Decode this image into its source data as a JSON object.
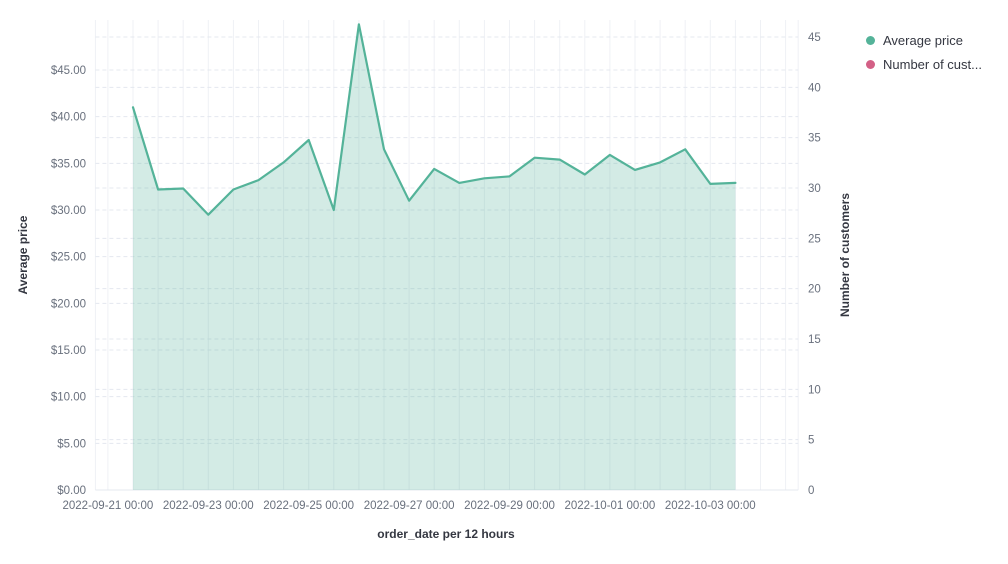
{
  "legend": {
    "items": [
      {
        "label": "Average price",
        "color": "#54b399"
      },
      {
        "label": "Number of cust...",
        "color": "#d36086"
      }
    ]
  },
  "colors": {
    "series_line": "#54b399",
    "series_fill": "rgba(84,179,153,0.26)",
    "grid_vertical": "#eff1f5",
    "grid_dashed": "#e4e8ef",
    "plot_edge": "#e4e8ef",
    "tick_text": "#69707d",
    "title_text": "#343741"
  },
  "chart_data": {
    "type": "area",
    "title": "",
    "xlabel": "order_date per 12 hours",
    "ylabel_left": "Average price",
    "ylabel_right": "Number of customers",
    "legend_position": "top-right",
    "grid": true,
    "x": [
      "2022-09-21 12:00",
      "2022-09-22 00:00",
      "2022-09-22 12:00",
      "2022-09-23 00:00",
      "2022-09-23 12:00",
      "2022-09-24 00:00",
      "2022-09-24 12:00",
      "2022-09-25 00:00",
      "2022-09-25 12:00",
      "2022-09-26 00:00",
      "2022-09-26 12:00",
      "2022-09-27 00:00",
      "2022-09-27 12:00",
      "2022-09-28 00:00",
      "2022-09-28 12:00",
      "2022-09-29 00:00",
      "2022-09-29 12:00",
      "2022-09-30 00:00",
      "2022-09-30 12:00",
      "2022-10-01 00:00",
      "2022-10-01 12:00",
      "2022-10-02 00:00",
      "2022-10-02 12:00",
      "2022-10-03 00:00",
      "2022-10-03 12:00"
    ],
    "series": [
      {
        "name": "Average price",
        "axis": "left",
        "color": "#54b399",
        "values": [
          41.0,
          32.2,
          32.3,
          29.5,
          32.2,
          33.2,
          35.1,
          37.5,
          30.0,
          49.9,
          36.5,
          31.0,
          34.4,
          32.9,
          33.4,
          33.6,
          35.6,
          35.4,
          33.8,
          35.9,
          34.3,
          35.1,
          36.5,
          32.8,
          32.9
        ]
      },
      {
        "name": "Number of cust...",
        "axis": "right",
        "color": "#d36086",
        "values": []
      }
    ],
    "left_axis": {
      "tick_labels": [
        "$0.00",
        "$5.00",
        "$10.00",
        "$15.00",
        "$20.00",
        "$25.00",
        "$30.00",
        "$35.00",
        "$40.00",
        "$45.00"
      ],
      "tick_values": [
        0,
        5,
        10,
        15,
        20,
        25,
        30,
        35,
        40,
        45
      ],
      "ylim": [
        0,
        50.3
      ]
    },
    "right_axis": {
      "tick_labels": [
        "0",
        "5",
        "10",
        "15",
        "20",
        "25",
        "30",
        "35",
        "40",
        "45"
      ],
      "tick_values": [
        0,
        5,
        10,
        15,
        20,
        25,
        30,
        35,
        40,
        45
      ],
      "ylim": [
        0,
        46.7
      ]
    },
    "x_ticks": [
      "2022-09-21 00:00",
      "2022-09-23 00:00",
      "2022-09-25 00:00",
      "2022-09-27 00:00",
      "2022-09-29 00:00",
      "2022-10-01 00:00",
      "2022-10-03 00:00"
    ]
  }
}
